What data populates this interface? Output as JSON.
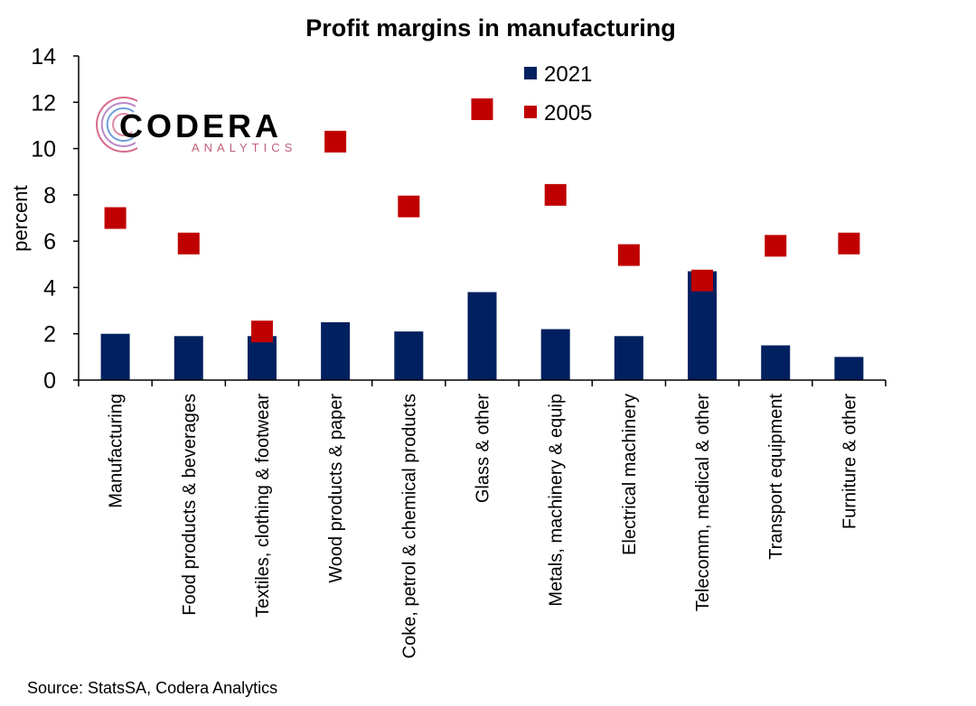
{
  "chart_data": {
    "type": "bar",
    "title": "Profit margins in manufacturing",
    "ylabel": "percent",
    "xlabel": "",
    "ylim": [
      0,
      14
    ],
    "yticks": [
      0,
      2,
      4,
      6,
      8,
      10,
      12,
      14
    ],
    "grid": false,
    "legend_position": "top-center",
    "categories": [
      "Manufacturing",
      "Food products & beverages",
      "Textiles, clothing & footwear",
      "Wood products & paper",
      "Coke, petrol & chemical products",
      "Glass & other",
      "Metals, machinery & equip",
      "Electrical machinery",
      "Telecomm, medical & other",
      "Transport equipment",
      "Furniture & other"
    ],
    "series": [
      {
        "name": "2021",
        "mark": "bar",
        "color": "#002060",
        "values": [
          2.0,
          1.9,
          1.9,
          2.5,
          2.1,
          3.8,
          2.2,
          1.9,
          4.7,
          1.5,
          1.0
        ]
      },
      {
        "name": "2005",
        "mark": "square",
        "color": "#C00000",
        "values": [
          7.0,
          5.9,
          2.1,
          10.3,
          7.5,
          11.7,
          8.0,
          5.4,
          4.3,
          5.8,
          5.9
        ]
      }
    ]
  },
  "source": "Source: StatsSA, Codera Analytics",
  "logo": {
    "name": "CODERA",
    "tagline": "ANALYTICS"
  },
  "colors": {
    "bar": "#002060",
    "marker": "#C00000",
    "axis": "#000000"
  }
}
